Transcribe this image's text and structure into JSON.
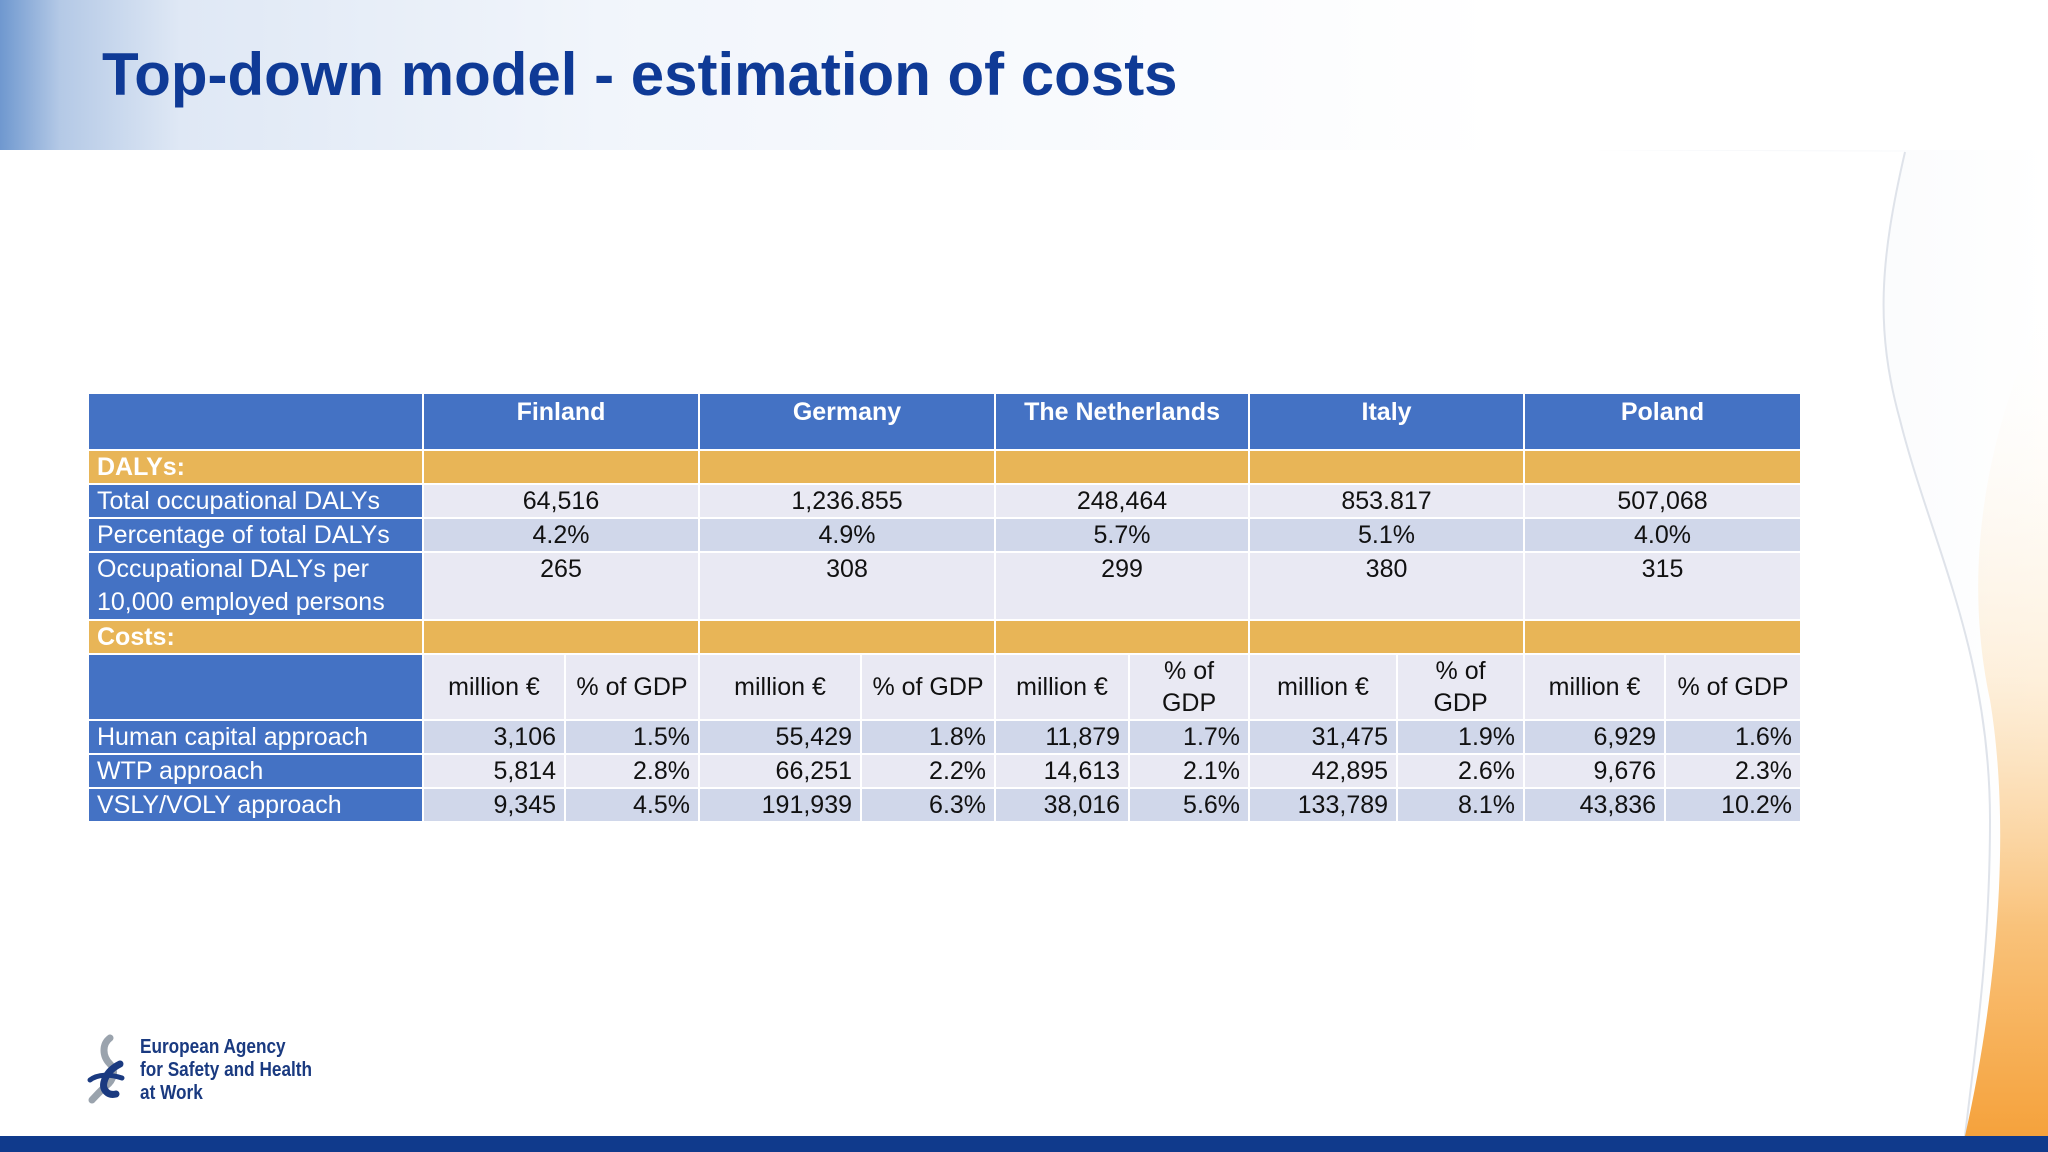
{
  "slide": {
    "title": "Top-down model - estimation of costs"
  },
  "table": {
    "countries": [
      "Finland",
      "Germany",
      "The Netherlands",
      "Italy",
      "Poland"
    ],
    "dalys_section": "DALYs:",
    "costs_section": "Costs:",
    "rows": {
      "total": {
        "label": "Total occupational DALYs",
        "values": [
          "64,516",
          "1,236.855",
          "248,464",
          "853.817",
          "507,068"
        ]
      },
      "percentage": {
        "label": "Percentage of total DALYs",
        "values": [
          "4.2%",
          "4.9%",
          "5.7%",
          "5.1%",
          "4.0%"
        ]
      },
      "per_employed": {
        "label": "Occupational DALYs per 10,000 employed persons",
        "values": [
          "265",
          "308",
          "299",
          "380",
          "315"
        ]
      }
    },
    "sub_headers": {
      "million": "million €",
      "pct_gdp": "% of GDP"
    },
    "cost_rows": [
      {
        "label": "Human capital approach",
        "million": [
          "3,106",
          "55,429",
          "11,879",
          "31,475",
          "6,929"
        ],
        "pct": [
          "1.5%",
          "1.8%",
          "1.7%",
          "1.9%",
          "1.6%"
        ]
      },
      {
        "label": "WTP approach",
        "million": [
          "5,814",
          "66,251",
          "14,613",
          "42,895",
          "9,676"
        ],
        "pct": [
          "2.8%",
          "2.2%",
          "2.1%",
          "2.6%",
          "2.3%"
        ]
      },
      {
        "label": "VSLY/VOLY approach",
        "million": [
          "9,345",
          "191,939",
          "38,016",
          "133,789",
          "43,836"
        ],
        "pct": [
          "4.5%",
          "6.3%",
          "5.6%",
          "8.1%",
          "10.2%"
        ]
      }
    ]
  },
  "logo": {
    "line1": "European Agency",
    "line2": "for Safety and Health",
    "line3": "at Work"
  },
  "colors": {
    "title": "#0f3a96",
    "header_blue": "#4472c4",
    "section_orange": "#e8b557",
    "row_light": "#e9e9f3",
    "row_dark": "#d0d7ea",
    "footer": "#103a8c"
  }
}
